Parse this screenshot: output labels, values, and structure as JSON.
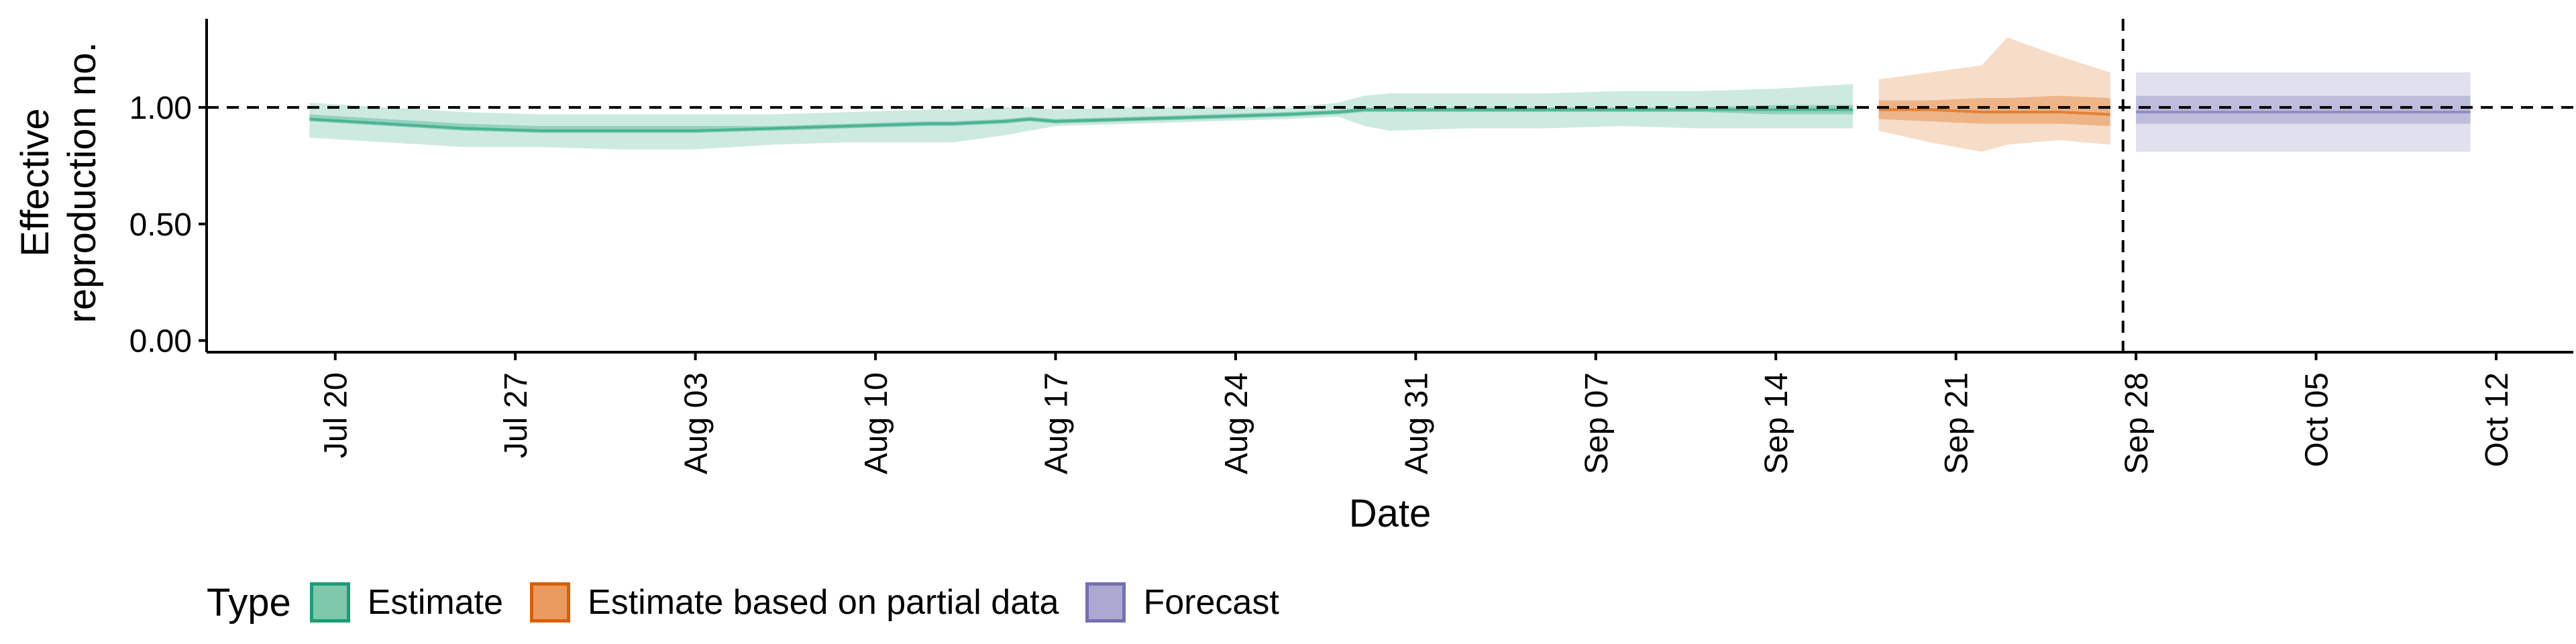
{
  "chart_data": {
    "type": "area",
    "title": "",
    "xlabel": "Date",
    "ylabel_lines": [
      "Effective",
      "reproduction no."
    ],
    "ylim": [
      -0.05,
      1.38
    ],
    "yticks": [
      0.0,
      0.5,
      1.0
    ],
    "ytick_labels": [
      "0.00",
      "0.50",
      "1.00"
    ],
    "xlim": [
      "2020-07-15",
      "2020-10-15"
    ],
    "xtick_dates": [
      "2020-07-20",
      "2020-07-27",
      "2020-08-03",
      "2020-08-10",
      "2020-08-17",
      "2020-08-24",
      "2020-08-31",
      "2020-09-07",
      "2020-09-14",
      "2020-09-21",
      "2020-09-28",
      "2020-10-05",
      "2020-10-12"
    ],
    "xtick_labels": [
      "Jul 20",
      "Jul 27",
      "Aug 03",
      "Aug 10",
      "Aug 17",
      "Aug 24",
      "Aug 31",
      "Sep 07",
      "Sep 14",
      "Sep 21",
      "Sep 28",
      "Oct 05",
      "Oct 12"
    ],
    "reference_line_y": 1.0,
    "forecast_start_date": "2020-09-27",
    "grid": false,
    "legend": {
      "title": "Type",
      "position": "bottom",
      "items": [
        {
          "label": "Estimate",
          "fill": "#7fc8ab",
          "border": "#1b9e77"
        },
        {
          "label": "Estimate based on partial data",
          "fill": "#eb9a60",
          "border": "#d95f02"
        },
        {
          "label": "Forecast",
          "fill": "#aca9d1",
          "border": "#7570b3"
        }
      ]
    },
    "series": [
      {
        "name": "Estimate",
        "color": "#1b9e77",
        "x": [
          "2020-07-19",
          "2020-07-22",
          "2020-07-25",
          "2020-07-28",
          "2020-07-31",
          "2020-08-03",
          "2020-08-06",
          "2020-08-09",
          "2020-08-12",
          "2020-08-13",
          "2020-08-15",
          "2020-08-16",
          "2020-08-17",
          "2020-08-20",
          "2020-08-23",
          "2020-08-26",
          "2020-08-28",
          "2020-08-29",
          "2020-08-30",
          "2020-09-02",
          "2020-09-05",
          "2020-09-08",
          "2020-09-11",
          "2020-09-14",
          "2020-09-17"
        ],
        "median": [
          0.95,
          0.93,
          0.91,
          0.9,
          0.9,
          0.9,
          0.91,
          0.92,
          0.93,
          0.93,
          0.94,
          0.95,
          0.94,
          0.95,
          0.96,
          0.97,
          0.98,
          0.99,
          0.99,
          0.99,
          0.99,
          0.99,
          0.99,
          0.99,
          0.99
        ],
        "lower50": [
          0.94,
          0.92,
          0.9,
          0.89,
          0.89,
          0.89,
          0.9,
          0.91,
          0.92,
          0.92,
          0.93,
          0.94,
          0.93,
          0.94,
          0.95,
          0.96,
          0.97,
          0.98,
          0.98,
          0.98,
          0.98,
          0.98,
          0.98,
          0.97,
          0.97
        ],
        "upper50": [
          0.97,
          0.95,
          0.93,
          0.92,
          0.92,
          0.92,
          0.92,
          0.93,
          0.94,
          0.94,
          0.95,
          0.96,
          0.95,
          0.96,
          0.97,
          0.98,
          0.99,
          1.0,
          1.0,
          1.0,
          1.0,
          1.0,
          1.0,
          1.01,
          1.01
        ],
        "lower90": [
          0.87,
          0.85,
          0.83,
          0.83,
          0.82,
          0.82,
          0.84,
          0.85,
          0.85,
          0.85,
          0.88,
          0.9,
          0.92,
          0.93,
          0.94,
          0.95,
          0.96,
          0.92,
          0.9,
          0.91,
          0.91,
          0.92,
          0.91,
          0.91,
          0.91
        ],
        "upper90": [
          1.02,
          1.0,
          0.98,
          0.97,
          0.97,
          0.97,
          0.97,
          0.98,
          0.99,
          0.99,
          1.0,
          1.0,
          0.99,
          1.0,
          1.0,
          1.0,
          1.02,
          1.05,
          1.06,
          1.06,
          1.06,
          1.07,
          1.07,
          1.08,
          1.1
        ]
      },
      {
        "name": "Estimate based on partial data",
        "color": "#d95f02",
        "x": [
          "2020-09-18",
          "2020-09-20",
          "2020-09-22",
          "2020-09-23",
          "2020-09-25",
          "2020-09-27"
        ],
        "median": [
          0.99,
          0.99,
          0.98,
          0.98,
          0.98,
          0.97
        ],
        "lower50": [
          0.95,
          0.94,
          0.93,
          0.93,
          0.93,
          0.92
        ],
        "upper50": [
          1.03,
          1.03,
          1.04,
          1.04,
          1.05,
          1.04
        ],
        "lower90": [
          0.9,
          0.85,
          0.81,
          0.84,
          0.86,
          0.84
        ],
        "upper90": [
          1.12,
          1.15,
          1.18,
          1.3,
          1.22,
          1.15
        ]
      },
      {
        "name": "Forecast",
        "color": "#7570b3",
        "x": [
          "2020-09-28",
          "2020-10-11"
        ],
        "median": [
          0.98,
          0.98
        ],
        "lower50": [
          0.93,
          0.93
        ],
        "upper50": [
          1.05,
          1.05
        ],
        "lower90": [
          0.81,
          0.81
        ],
        "upper90": [
          1.15,
          1.15
        ]
      }
    ]
  }
}
